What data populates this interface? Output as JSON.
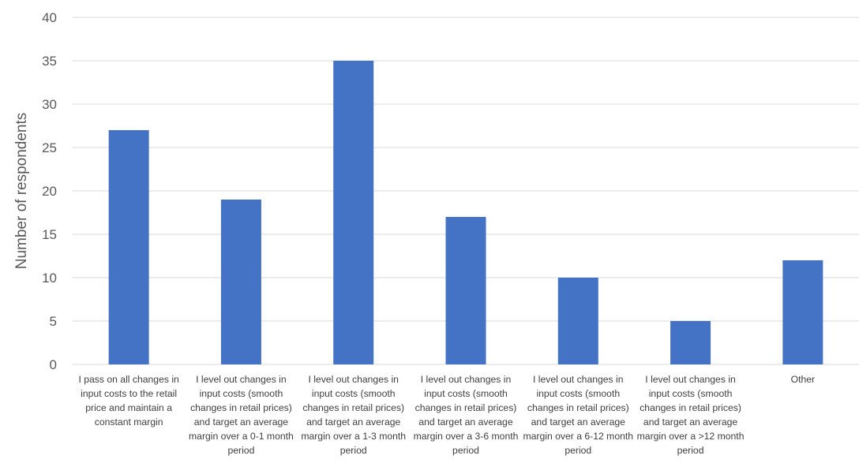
{
  "chart_data": {
    "type": "bar",
    "title": "",
    "xlabel": "",
    "ylabel": "Number of respondents",
    "ylim": [
      0,
      40
    ],
    "yticks": [
      0,
      5,
      10,
      15,
      20,
      25,
      30,
      35,
      40
    ],
    "grid": true,
    "legend": "none",
    "bar_color": "#4472C4",
    "categories": [
      "I pass on all changes in input costs to the retail price and maintain a constant margin",
      "I level out changes in input costs (smooth changes in retail prices) and target an average margin over a 0-1 month period",
      "I level out changes in input costs (smooth changes in retail prices) and target an average margin over a 1-3 month period",
      "I level out changes in input costs (smooth changes in retail prices) and target an average margin over a 3-6 month period",
      "I level out changes in input costs (smooth changes in retail prices) and target an average margin over a 6-12 month period",
      "I level out changes in input costs (smooth changes in retail prices) and target an average margin over a >12 month period",
      "Other"
    ],
    "values": [
      27,
      19,
      35,
      17,
      10,
      5,
      12
    ]
  }
}
